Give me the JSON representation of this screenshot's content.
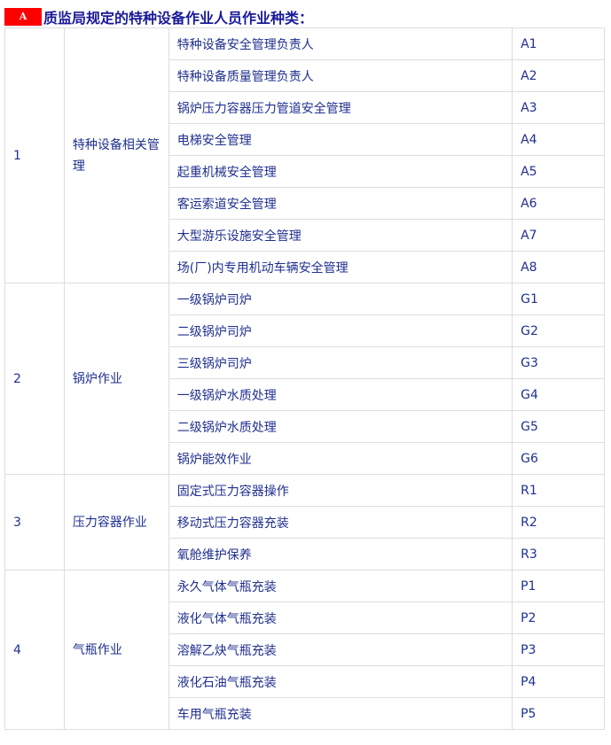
{
  "header": {
    "badge": "A",
    "title": "质监局规定的特种设备作业人员作业种类："
  },
  "groups": [
    {
      "no": "1",
      "category": "特种设备相关管理",
      "items": [
        [
          "特种设备安全管理负责人",
          "A1"
        ],
        [
          "特种设备质量管理负责人",
          "A2"
        ],
        [
          "锅炉压力容器压力管道安全管理",
          "A3"
        ],
        [
          "电梯安全管理",
          "A4"
        ],
        [
          "起重机械安全管理",
          "A5"
        ],
        [
          "客运索道安全管理",
          "A6"
        ],
        [
          "大型游乐设施安全管理",
          "A7"
        ],
        [
          "场(厂)内专用机动车辆安全管理",
          "A8"
        ]
      ]
    },
    {
      "no": "2",
      "category": "锅炉作业",
      "items": [
        [
          "一级锅炉司炉",
          "G1"
        ],
        [
          "二级锅炉司炉",
          "G2"
        ],
        [
          "三级锅炉司炉",
          "G3"
        ],
        [
          "一级锅炉水质处理",
          "G4"
        ],
        [
          "二级锅炉水质处理",
          "G5"
        ],
        [
          "锅炉能效作业",
          "G6"
        ]
      ]
    },
    {
      "no": "3",
      "category": "压力容器作业",
      "items": [
        [
          "固定式压力容器操作",
          "R1"
        ],
        [
          "移动式压力容器充装",
          "R2"
        ],
        [
          "氧舱维护保养",
          "R3"
        ]
      ]
    },
    {
      "no": "4",
      "category": "气瓶作业",
      "items": [
        [
          "永久气体气瓶充装",
          "P1"
        ],
        [
          "液化气体气瓶充装",
          "P2"
        ],
        [
          "溶解乙炔气瓶充装",
          "P3"
        ],
        [
          "液化石油气瓶充装",
          "P4"
        ],
        [
          "车用气瓶充装",
          "P5"
        ]
      ]
    }
  ]
}
